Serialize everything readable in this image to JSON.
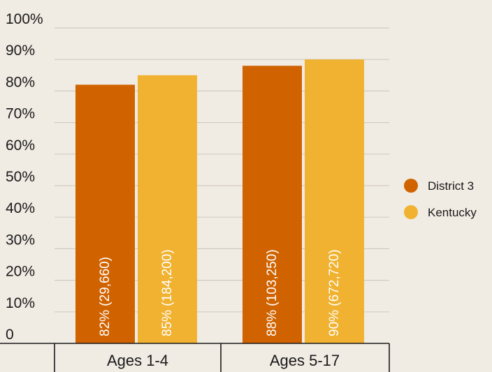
{
  "chart_data": {
    "type": "bar",
    "title": "",
    "xlabel": "",
    "ylabel": "",
    "ylim": [
      0,
      100
    ],
    "yticks": [
      {
        "value": 0,
        "label": "0"
      },
      {
        "value": 10,
        "label": "10%"
      },
      {
        "value": 20,
        "label": "20%"
      },
      {
        "value": 30,
        "label": "30%"
      },
      {
        "value": 40,
        "label": "40%"
      },
      {
        "value": 50,
        "label": "50%"
      },
      {
        "value": 60,
        "label": "60%"
      },
      {
        "value": 70,
        "label": "70%"
      },
      {
        "value": 80,
        "label": "80%"
      },
      {
        "value": 90,
        "label": "90%"
      },
      {
        "value": 100,
        "label": "100%"
      }
    ],
    "categories": [
      "Ages 1-4",
      "Ages 5-17"
    ],
    "series": [
      {
        "name": "District 3",
        "color": "#d06300",
        "values": [
          82,
          88
        ],
        "labels": [
          "82% (29,660)",
          "88% (103,250)"
        ]
      },
      {
        "name": "Kentucky",
        "color": "#f0b230",
        "values": [
          85,
          90
        ],
        "labels": [
          "85% (184,200)",
          "90% (672,720)"
        ]
      }
    ],
    "grid": true,
    "legend_position": "right"
  }
}
